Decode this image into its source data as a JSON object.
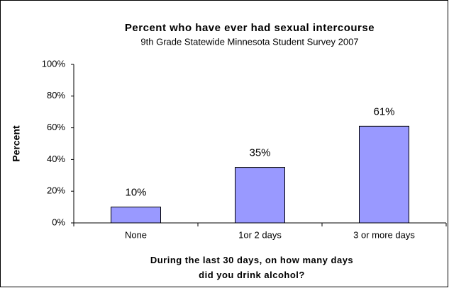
{
  "chart_data": {
    "type": "bar",
    "title": "Percent who have ever had sexual intercourse",
    "subtitle": "9th Grade Statewide Minnesota Student Survey 2007",
    "y_label": "Percent",
    "x_label": "During the last 30 days, on how many days did you drink alcohol?",
    "categories": [
      "None",
      "1or 2 days",
      "3 or more days"
    ],
    "values": [
      10,
      35,
      61
    ],
    "value_labels": [
      "10%",
      "35%",
      "61%"
    ],
    "color": "#9999ff",
    "ylim": [
      0,
      100
    ],
    "yticks": [
      {
        "value": 0,
        "label": "0%"
      },
      {
        "value": 20,
        "label": "20%"
      },
      {
        "value": 40,
        "label": "40%"
      },
      {
        "value": 60,
        "label": "60%"
      },
      {
        "value": 80,
        "label": "80%"
      },
      {
        "value": 100,
        "label": "100%"
      }
    ],
    "grid": false
  }
}
